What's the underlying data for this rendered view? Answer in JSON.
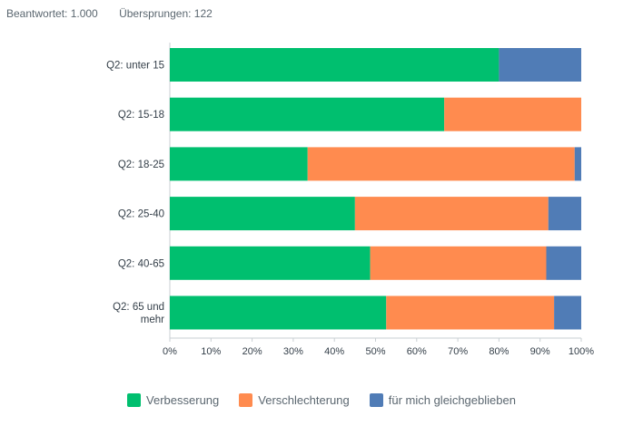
{
  "summary": {
    "answered": "Beantwortet: 1.000",
    "skipped": "Übersprungen: 122"
  },
  "chart_data": {
    "type": "bar",
    "orientation": "horizontal",
    "stacked": true,
    "categories": [
      "Q2: unter 15",
      "Q2: 15-18",
      "Q2: 18-25",
      "Q2: 25-40",
      "Q2: 40-65",
      "Q2: 65 und mehr"
    ],
    "series": [
      {
        "name": "Verbesserung",
        "color": "#00bf6f",
        "values": [
          80,
          66.7,
          33.5,
          45,
          48.7,
          52.6
        ]
      },
      {
        "name": "Verschlechterung",
        "color": "#ff8b4f",
        "values": [
          0,
          33.3,
          64.9,
          47,
          42.8,
          40.8
        ]
      },
      {
        "name": "für mich gleichgeblieben",
        "color": "#507cb6",
        "values": [
          20,
          0,
          1.6,
          8,
          8.5,
          6.6
        ]
      }
    ],
    "xlim": [
      0,
      100
    ],
    "xticks": [
      "0%",
      "10%",
      "20%",
      "30%",
      "40%",
      "50%",
      "60%",
      "70%",
      "80%",
      "90%",
      "100%"
    ],
    "grid": false,
    "legend": "bottom-center"
  }
}
